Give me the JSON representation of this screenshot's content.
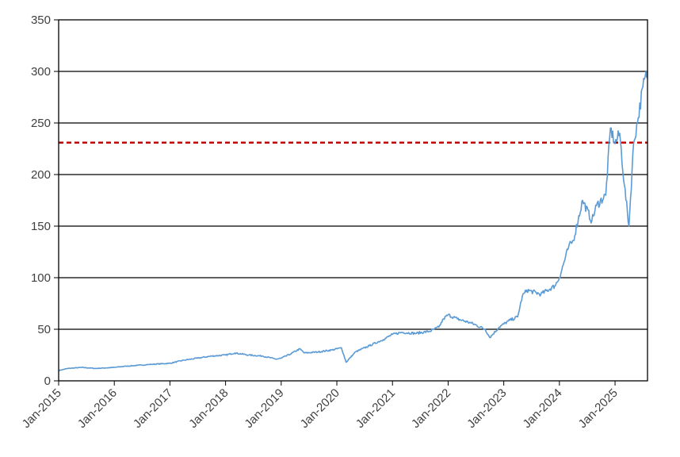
{
  "chart_data": {
    "type": "line",
    "title": "",
    "xlabel": "",
    "ylabel": "",
    "ylim": [
      0,
      350
    ],
    "yticks": [
      0,
      50,
      100,
      150,
      200,
      250,
      300,
      350
    ],
    "xlim": [
      "2015-01",
      "2025-08"
    ],
    "xtick_labels": [
      "Jan-2015",
      "Jan-2016",
      "Jan-2017",
      "Jan-2018",
      "Jan-2019",
      "Jan-2020",
      "Jan-2021",
      "Jan-2022",
      "Jan-2023",
      "Jan-2024",
      "Jan-2025"
    ],
    "grid": true,
    "legend": "none",
    "reference_line": {
      "value": 231,
      "style": "dashed",
      "color": "#c00000"
    },
    "series": [
      {
        "color": "#5b9bd5",
        "x": [
          "2015-01",
          "2015-03",
          "2015-06",
          "2015-09",
          "2016-01",
          "2016-03",
          "2016-06",
          "2016-09",
          "2017-01",
          "2017-04",
          "2017-07",
          "2017-10",
          "2018-01",
          "2018-03",
          "2018-06",
          "2018-09",
          "2018-12",
          "2019-01",
          "2019-03",
          "2019-05",
          "2019-06",
          "2019-09",
          "2019-12",
          "2020-02",
          "2020-03",
          "2020-05",
          "2020-08",
          "2020-11",
          "2021-01",
          "2021-03",
          "2021-06",
          "2021-09",
          "2021-11",
          "2021-12",
          "2022-01",
          "2022-03",
          "2022-06",
          "2022-09",
          "2022-10",
          "2022-12",
          "2023-02",
          "2023-04",
          "2023-05",
          "2023-06",
          "2023-09",
          "2023-12",
          "2024-01",
          "2024-03",
          "2024-04",
          "2024-06",
          "2024-08",
          "2024-09",
          "2024-11",
          "2024-12",
          "2025-01",
          "2025-02",
          "2025-03",
          "2025-04",
          "2025-05",
          "2025-06",
          "2025-07",
          "2025-08"
        ],
        "values": [
          10,
          12,
          13,
          12,
          13,
          14,
          15,
          16,
          17,
          20,
          22,
          24,
          25,
          27,
          25,
          24,
          21,
          22,
          26,
          31,
          27,
          28,
          30,
          32,
          18,
          28,
          34,
          40,
          45,
          47,
          46,
          48,
          52,
          60,
          64,
          60,
          56,
          50,
          42,
          52,
          58,
          62,
          82,
          88,
          84,
          92,
          100,
          130,
          136,
          175,
          155,
          170,
          180,
          245,
          230,
          240,
          190,
          150,
          230,
          255,
          285,
          300
        ]
      }
    ]
  }
}
